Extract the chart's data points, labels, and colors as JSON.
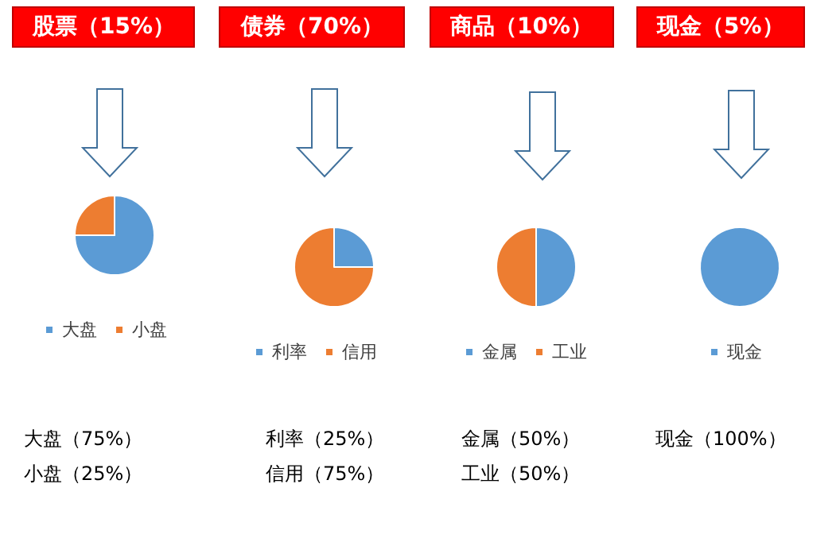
{
  "chart_data": [
    {
      "type": "pie",
      "title": "股票（15%）",
      "categories": [
        "大盘",
        "小盘"
      ],
      "values": [
        75,
        25
      ],
      "colors": [
        "#5b9bd5",
        "#ed7d31"
      ],
      "legend": "bottom",
      "annotations": [
        "大盘（75%）",
        "小盘（25%）"
      ]
    },
    {
      "type": "pie",
      "title": "债券（70%）",
      "categories": [
        "利率",
        "信用"
      ],
      "values": [
        25,
        75
      ],
      "colors": [
        "#5b9bd5",
        "#ed7d31"
      ],
      "legend": "bottom",
      "annotations": [
        "利率（25%）",
        "信用（75%）"
      ]
    },
    {
      "type": "pie",
      "title": "商品（10%）",
      "categories": [
        "金属",
        "工业"
      ],
      "values": [
        50,
        50
      ],
      "colors": [
        "#5b9bd5",
        "#ed7d31"
      ],
      "legend": "bottom",
      "annotations": [
        "金属（50%）",
        "工业（50%）"
      ]
    },
    {
      "type": "pie",
      "title": "现金（5%）",
      "categories": [
        "现金"
      ],
      "values": [
        100
      ],
      "colors": [
        "#5b9bd5"
      ],
      "legend": "bottom",
      "annotations": [
        "现金（100%）"
      ]
    }
  ]
}
